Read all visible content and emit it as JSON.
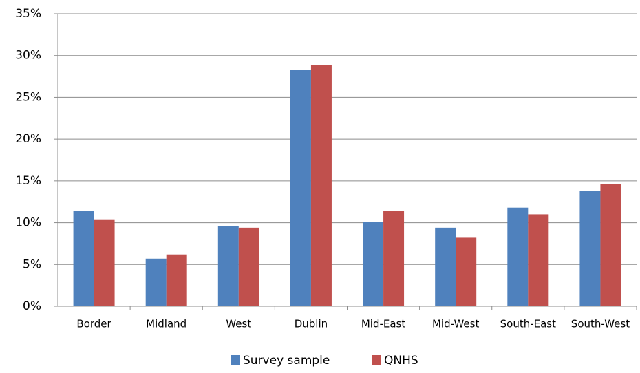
{
  "chart_data": {
    "type": "bar",
    "categories": [
      "Border",
      "Midland",
      "West",
      "Dublin",
      "Mid-East",
      "Mid-West",
      "South-East",
      "South-West"
    ],
    "series": [
      {
        "name": "Survey sample",
        "color": "#4f81bd",
        "values": [
          11.4,
          5.7,
          9.6,
          28.3,
          10.1,
          9.4,
          11.8,
          13.8
        ]
      },
      {
        "name": "QNHS",
        "color": "#c0504d",
        "values": [
          10.4,
          6.2,
          9.4,
          28.9,
          11.4,
          8.2,
          11.0,
          14.6
        ]
      }
    ],
    "ylim": [
      0,
      35
    ],
    "yticks": [
      {
        "value": 0,
        "label": "0%"
      },
      {
        "value": 5,
        "label": "5%"
      },
      {
        "value": 10,
        "label": "10%"
      },
      {
        "value": 15,
        "label": "15%"
      },
      {
        "value": 20,
        "label": "20%"
      },
      {
        "value": 25,
        "label": "25%"
      },
      {
        "value": 30,
        "label": "30%"
      },
      {
        "value": 35,
        "label": "35%"
      }
    ],
    "grid": true,
    "legend": "bottom"
  }
}
